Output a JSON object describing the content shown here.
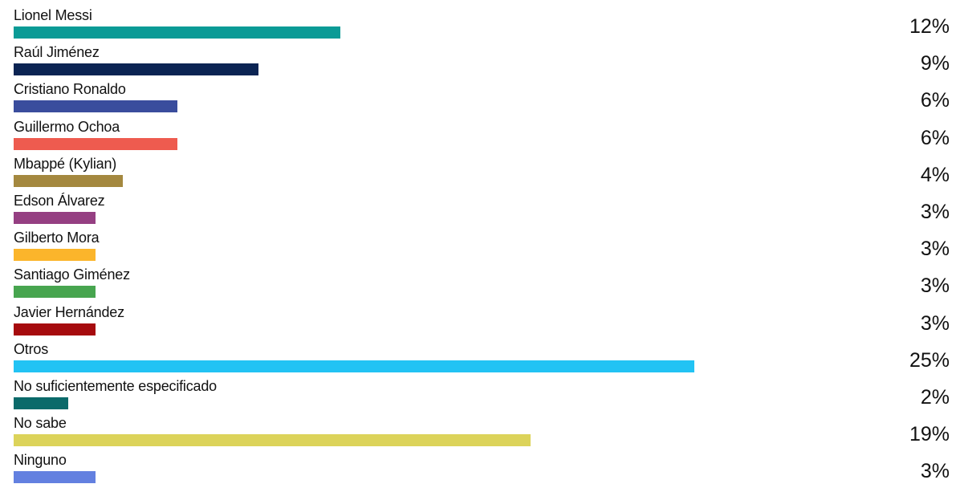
{
  "chart_data": {
    "type": "bar",
    "orientation": "horizontal",
    "categories": [
      "Lionel Messi",
      "Raúl Jiménez",
      "Cristiano Ronaldo",
      "Guillermo Ochoa",
      "Mbappé (Kylian)",
      "Edson Álvarez",
      "Gilberto Mora",
      "Santiago Giménez",
      "Javier Hernández",
      "Otros",
      "No suficientemente especificado",
      "No sabe",
      "Ninguno"
    ],
    "values": [
      12,
      9,
      6,
      6,
      4,
      3,
      3,
      3,
      3,
      25,
      2,
      19,
      3
    ],
    "value_labels": [
      "12%",
      "9%",
      "6%",
      "6%",
      "4%",
      "3%",
      "3%",
      "3%",
      "3%",
      "25%",
      "2%",
      "19%",
      "3%"
    ],
    "unit": "%",
    "colors": [
      "#0a9b96",
      "#0b2453",
      "#3a4d9d",
      "#ee5b4f",
      "#a4883f",
      "#953f82",
      "#fbb52b",
      "#47a54f",
      "#a60b0e",
      "#22c3f4",
      "#0b6a6a",
      "#dcd35a",
      "#6380e0"
    ],
    "xlim": [
      0,
      25
    ],
    "title": "",
    "xlabel": "",
    "ylabel": "",
    "grid": false,
    "legend": "none"
  }
}
